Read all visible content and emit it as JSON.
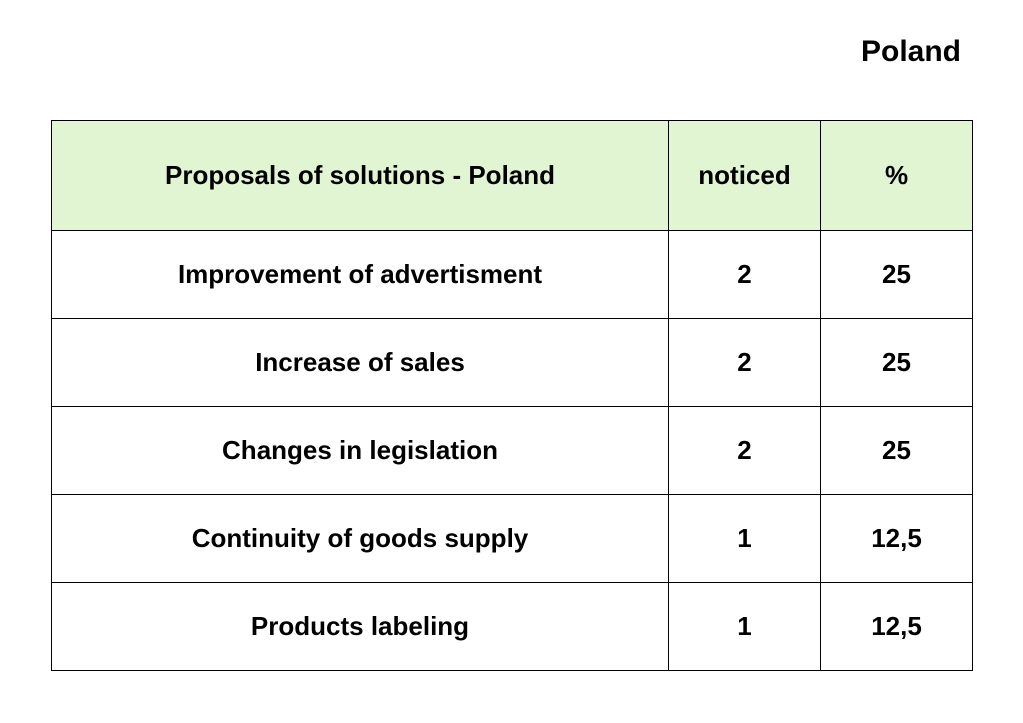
{
  "page": {
    "title": "Poland"
  },
  "table": {
    "header_bg": "#e2f5d3",
    "columns": [
      "Proposals of solutions - Poland",
      "noticed",
      "%"
    ],
    "rows": [
      [
        "Improvement of advertisment",
        "2",
        "25"
      ],
      [
        "Increase of sales",
        "2",
        "25"
      ],
      [
        "Changes in legislation",
        "2",
        "25"
      ],
      [
        "Continuity of goods supply",
        "1",
        "12,5"
      ],
      [
        "Products labeling",
        "1",
        "12,5"
      ]
    ]
  }
}
